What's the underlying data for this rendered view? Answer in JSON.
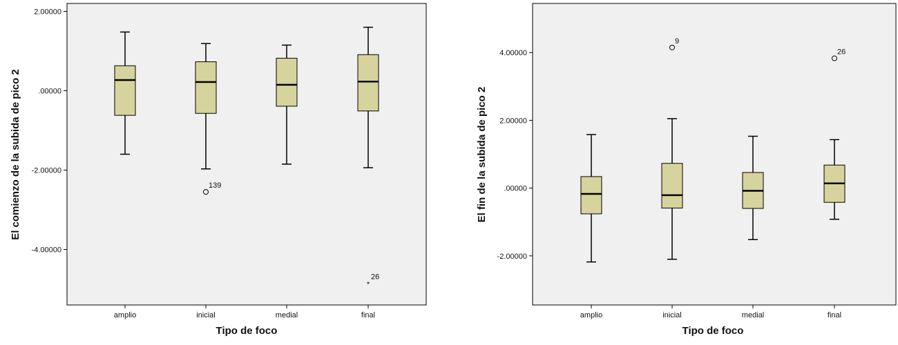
{
  "colors": {
    "plot_background": "#f0f0f0",
    "box_fill": "#d6d39d",
    "stroke": "#000000"
  },
  "chart_data": [
    {
      "type": "boxplot",
      "xlabel": "Tipo de foco",
      "ylabel": "El comienzo de la subida de pico 2",
      "ylim": [
        -5.4,
        2.2
      ],
      "yticks": [
        2.0,
        0.0,
        -2.0,
        -4.0
      ],
      "ytick_labels": [
        "2.00000",
        ".00000",
        "-2.00000",
        "-4.00000"
      ],
      "grid": false,
      "categories": [
        "amplio",
        "inicial",
        "medial",
        "final"
      ],
      "boxes": [
        {
          "category": "amplio",
          "whisker_low": -1.6,
          "q1": -0.62,
          "median": 0.27,
          "q3": 0.63,
          "whisker_high": 1.48,
          "outliers": []
        },
        {
          "category": "inicial",
          "whisker_low": -1.97,
          "q1": -0.57,
          "median": 0.22,
          "q3": 0.73,
          "whisker_high": 1.19,
          "outliers": [
            {
              "value": -2.55,
              "label": "139",
              "marker": "circle"
            }
          ]
        },
        {
          "category": "medial",
          "whisker_low": -1.85,
          "q1": -0.39,
          "median": 0.15,
          "q3": 0.82,
          "whisker_high": 1.15,
          "outliers": []
        },
        {
          "category": "final",
          "whisker_low": -1.94,
          "q1": -0.51,
          "median": 0.23,
          "q3": 0.91,
          "whisker_high": 1.6,
          "outliers": [
            {
              "value": -4.85,
              "label": "26",
              "marker": "star"
            }
          ]
        }
      ]
    },
    {
      "type": "boxplot",
      "xlabel": "Tipo de foco",
      "ylabel": "El fin de la subida de pico 2",
      "ylim": [
        -3.45,
        5.45
      ],
      "yticks": [
        4.0,
        2.0,
        0.0,
        -2.0
      ],
      "ytick_labels": [
        "4.00000",
        "2.00000",
        ".00000",
        "-2.00000"
      ],
      "grid": false,
      "categories": [
        "amplio",
        "inicial",
        "medial",
        "final"
      ],
      "boxes": [
        {
          "category": "amplio",
          "whisker_low": -2.18,
          "q1": -0.76,
          "median": -0.17,
          "q3": 0.34,
          "whisker_high": 1.58,
          "outliers": []
        },
        {
          "category": "inicial",
          "whisker_low": -2.1,
          "q1": -0.59,
          "median": -0.21,
          "q3": 0.73,
          "whisker_high": 2.05,
          "outliers": [
            {
              "value": 4.15,
              "label": "9",
              "marker": "circle"
            }
          ]
        },
        {
          "category": "medial",
          "whisker_low": -1.52,
          "q1": -0.6,
          "median": -0.08,
          "q3": 0.46,
          "whisker_high": 1.53,
          "outliers": []
        },
        {
          "category": "final",
          "whisker_low": -0.92,
          "q1": -0.42,
          "median": 0.14,
          "q3": 0.68,
          "whisker_high": 1.43,
          "outliers": [
            {
              "value": 3.83,
              "label": "26",
              "marker": "circle"
            }
          ]
        }
      ]
    }
  ]
}
